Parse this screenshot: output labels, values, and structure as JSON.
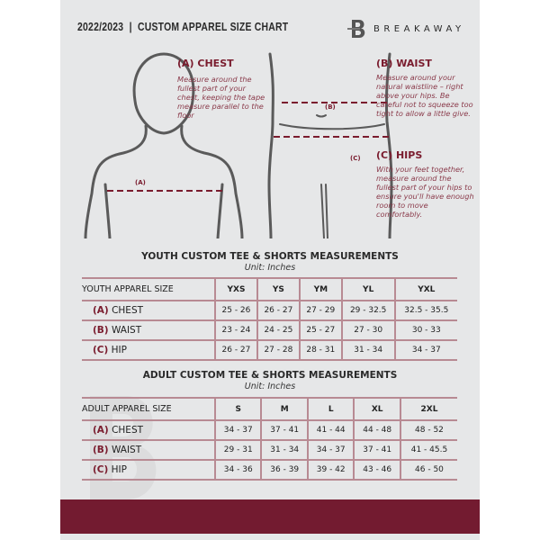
{
  "header": {
    "title": "2022/2023  |  CUSTOM APPAREL SIZE CHART",
    "brand": "BREAKAWAY",
    "logo_letter": "B"
  },
  "guide": {
    "chest": {
      "heading": "(A) CHEST",
      "text": "Measure around the fullest part of your chest, keeping the tape measure parallel to the floor",
      "marker": "(A)"
    },
    "waist": {
      "heading": "(B) WAIST",
      "text": "Measure around your natural waistline – right above your hips. Be careful not to squeeze too tight to allow a little give.",
      "marker": "(B)"
    },
    "hips": {
      "heading": "(C) HIPS",
      "text": "With your feet together, measure around the fullest part of your hips to ensure you'll have enough room to move comfortably.",
      "marker": "(C)"
    }
  },
  "colors": {
    "accent": "#731b30",
    "paper": "#e6e7e8"
  },
  "youth": {
    "title": "YOUTH CUSTOM TEE & SHORTS MEASUREMENTS",
    "unit": "Unit: Inches",
    "header": [
      "YOUTH APPAREL SIZE",
      "YXS",
      "YS",
      "YM",
      "YL",
      "YXL"
    ],
    "rows": [
      {
        "code": "(A)",
        "name": "CHEST",
        "values": [
          "25 - 26",
          "26 - 27",
          "27 - 29",
          "29 - 32.5",
          "32.5 - 35.5"
        ]
      },
      {
        "code": "(B)",
        "name": "WAIST",
        "values": [
          "23 - 24",
          "24 - 25",
          "25 - 27",
          "27 - 30",
          "30 - 33"
        ]
      },
      {
        "code": "(C)",
        "name": "HIP",
        "values": [
          "26 - 27",
          "27 - 28",
          "28 - 31",
          "31 - 34",
          "34 - 37"
        ]
      }
    ]
  },
  "adult": {
    "title": "ADULT CUSTOM TEE & SHORTS MEASUREMENTS",
    "unit": "Unit: Inches",
    "header": [
      "ADULT APPAREL SIZE",
      "S",
      "M",
      "L",
      "XL",
      "2XL"
    ],
    "rows": [
      {
        "code": "(A)",
        "name": "CHEST",
        "values": [
          "34 - 37",
          "37 - 41",
          "41 - 44",
          "44 - 48",
          "48 - 52"
        ]
      },
      {
        "code": "(B)",
        "name": "WAIST",
        "values": [
          "29 - 31",
          "31 - 34",
          "34 - 37",
          "37 - 41",
          "41 - 45.5"
        ]
      },
      {
        "code": "(C)",
        "name": "HIP",
        "values": [
          "34 - 36",
          "36 - 39",
          "39 - 42",
          "43 - 46",
          "46 - 50"
        ]
      }
    ]
  }
}
